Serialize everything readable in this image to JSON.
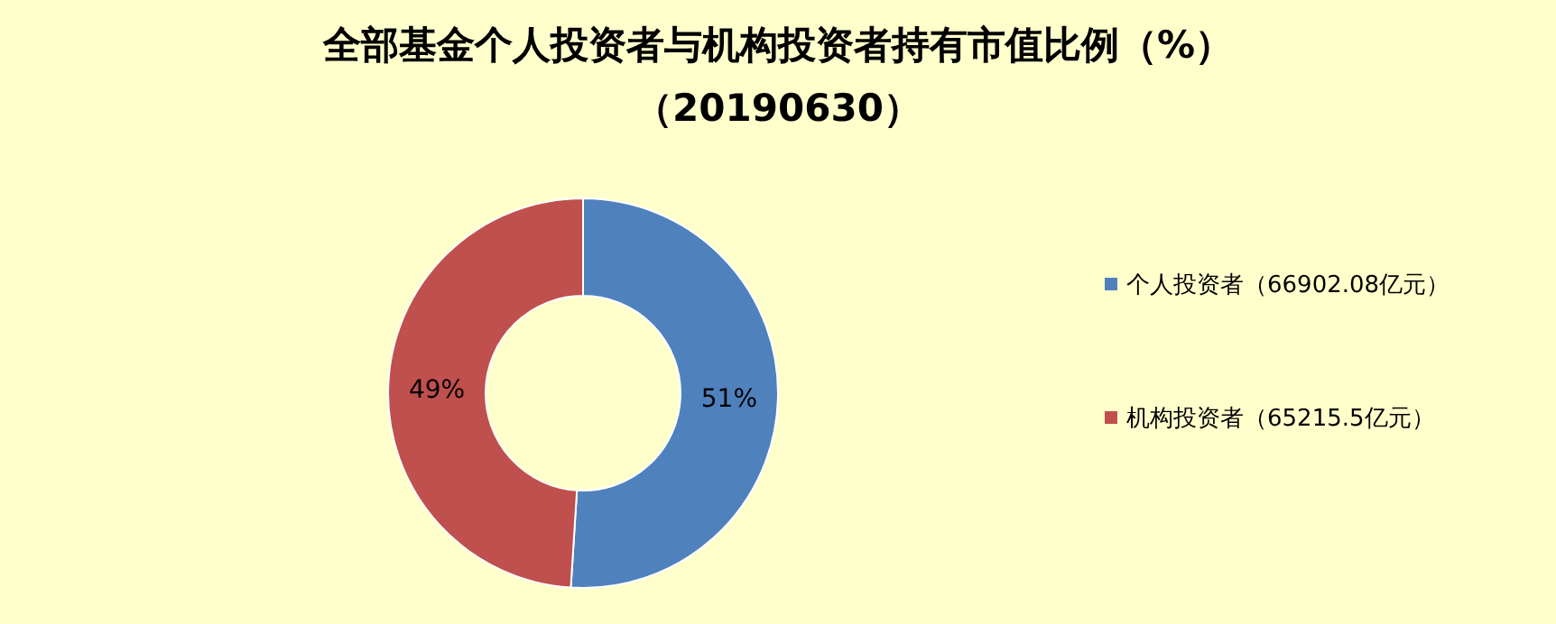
{
  "chart_data": {
    "type": "donut",
    "title": "全部基金个人投资者与机构投资者持有市值比例（%）",
    "subtitle": "（20190630）",
    "categories": [
      "个人投资者（66902.08亿元）",
      "机构投资者（65215.5亿元）"
    ],
    "values": [
      51,
      49
    ],
    "colors": [
      "#4f81bd",
      "#c0504d"
    ],
    "value_labels": [
      "51%",
      "49%"
    ],
    "legend": "right"
  }
}
